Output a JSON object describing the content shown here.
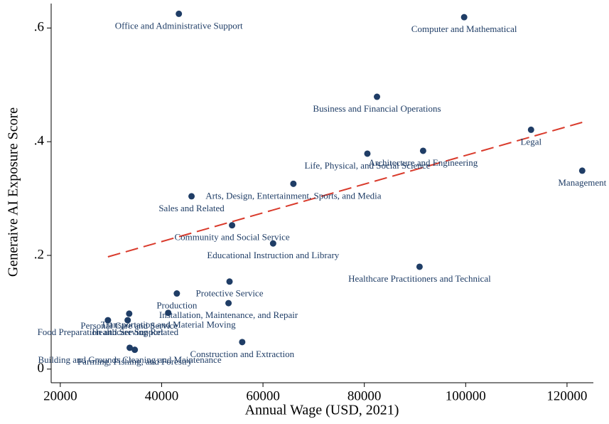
{
  "chart_data": {
    "type": "scatter",
    "xlabel": "Annual Wage (USD, 2021)",
    "ylabel": "Generaive AI Exposure Score",
    "labels": [
      "Office and Administrative Support",
      "Computer and Mathematical",
      "Business and Financial Operations",
      "Legal",
      "Management",
      "Architecture and Engineering",
      "Life, Physical, and Social Science",
      "Arts, Design, Entertainment, Sports, and Media",
      "Sales and Related",
      "Community and Social Service",
      "Educational Instruction and Library",
      "Healthcare Practitioners and Technical",
      "Protective Service",
      "Production",
      "Transportation and Material Moving",
      "Installation, Maintenance, and Repair",
      "Personal Care and Service",
      "Healthcare Support",
      "Food Preparation and Serving Related",
      "Construction and Extraction",
      "Building and Grounds Cleaning and Maintenance",
      "Farming, Fishing, and Forestry"
    ],
    "x": [
      43400,
      99700,
      82500,
      112900,
      123000,
      91600,
      80600,
      66000,
      45900,
      53900,
      62000,
      90900,
      53400,
      43000,
      41300,
      53200,
      33600,
      33300,
      29400,
      55900,
      33700,
      34700
    ],
    "values": [
      0.625,
      0.619,
      0.479,
      0.421,
      0.349,
      0.384,
      0.379,
      0.326,
      0.304,
      0.253,
      0.221,
      0.18,
      0.154,
      0.133,
      0.099,
      0.116,
      0.0975,
      0.086,
      0.086,
      0.0475,
      0.0375,
      0.034
    ],
    "color": "#1f3d66",
    "fit_line": {
      "x": [
        29400,
        123000
      ],
      "values": [
        0.1975,
        0.434
      ],
      "color": "#d93a2b"
    },
    "xlim": [
      18200,
      125200
    ],
    "xticks": [
      20000,
      40000,
      60000,
      80000,
      100000,
      120000
    ],
    "ylim": [
      -0.024,
      0.643
    ],
    "yticks": [
      0,
      {
        "value": 0.2,
        "label": ".2"
      },
      {
        "value": 0.4,
        "label": ".4"
      },
      {
        "value": 0.6,
        "label": ".6"
      }
    ]
  }
}
